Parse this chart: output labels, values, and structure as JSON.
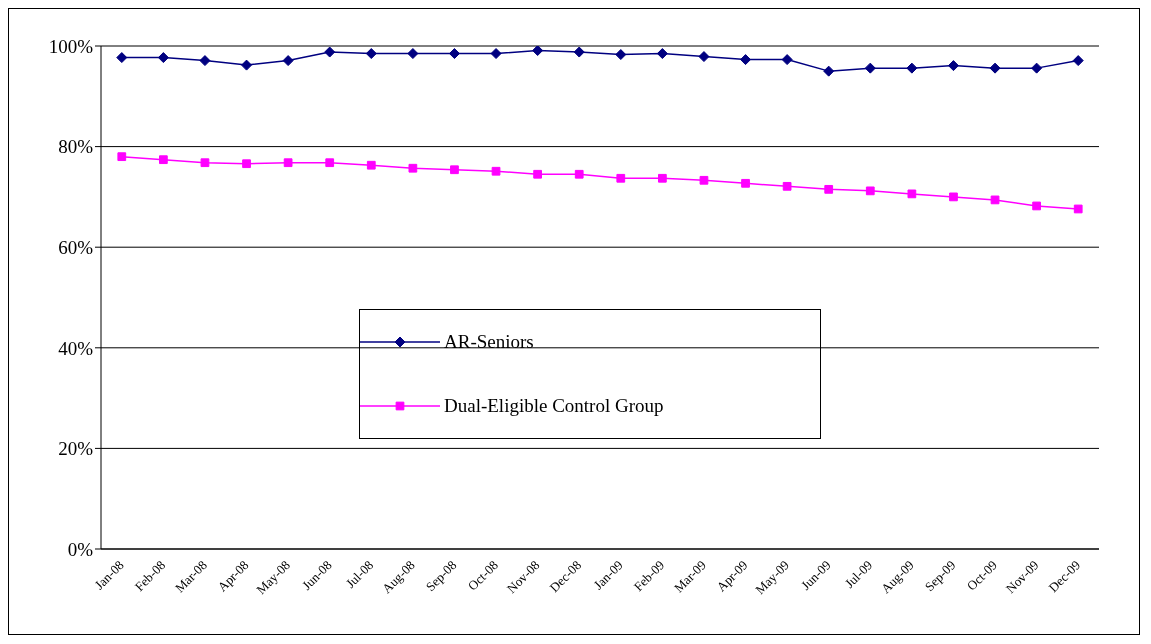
{
  "chart_data": {
    "type": "line",
    "categories": [
      "Jan-08",
      "Feb-08",
      "Mar-08",
      "Apr-08",
      "May-08",
      "Jun-08",
      "Jul-08",
      "Aug-08",
      "Sep-08",
      "Oct-08",
      "Nov-08",
      "Dec-08",
      "Jan-09",
      "Feb-09",
      "Mar-09",
      "Apr-09",
      "May-09",
      "Jun-09",
      "Jul-09",
      "Aug-09",
      "Sep-09",
      "Oct-09",
      "Nov-09",
      "Dec-09"
    ],
    "series": [
      {
        "name": "AR-Seniors",
        "color": "#000080",
        "marker": "diamond",
        "values": [
          97.7,
          97.7,
          97.1,
          96.2,
          97.1,
          98.8,
          98.5,
          98.5,
          98.5,
          98.5,
          99.1,
          98.8,
          98.3,
          98.5,
          97.9,
          97.3,
          97.3,
          95.0,
          95.6,
          95.6,
          96.1,
          95.6,
          95.6,
          97.1
        ]
      },
      {
        "name": "Dual-Eligible Control Group",
        "color": "#ff00ff",
        "marker": "square",
        "values": [
          78.0,
          77.4,
          76.8,
          76.6,
          76.8,
          76.8,
          76.3,
          75.7,
          75.4,
          75.1,
          74.5,
          74.5,
          73.7,
          73.7,
          73.3,
          72.7,
          72.1,
          71.5,
          71.2,
          70.6,
          70.0,
          69.4,
          68.2,
          67.6
        ]
      }
    ],
    "ylim": [
      0,
      100
    ],
    "yticks": [
      {
        "value": 0,
        "label": "0%"
      },
      {
        "value": 20,
        "label": "20%"
      },
      {
        "value": 40,
        "label": "40%"
      },
      {
        "value": 60,
        "label": "60%"
      },
      {
        "value": 80,
        "label": "80%"
      },
      {
        "value": 100,
        "label": "100%"
      }
    ],
    "grid": "y",
    "legend": "center"
  }
}
